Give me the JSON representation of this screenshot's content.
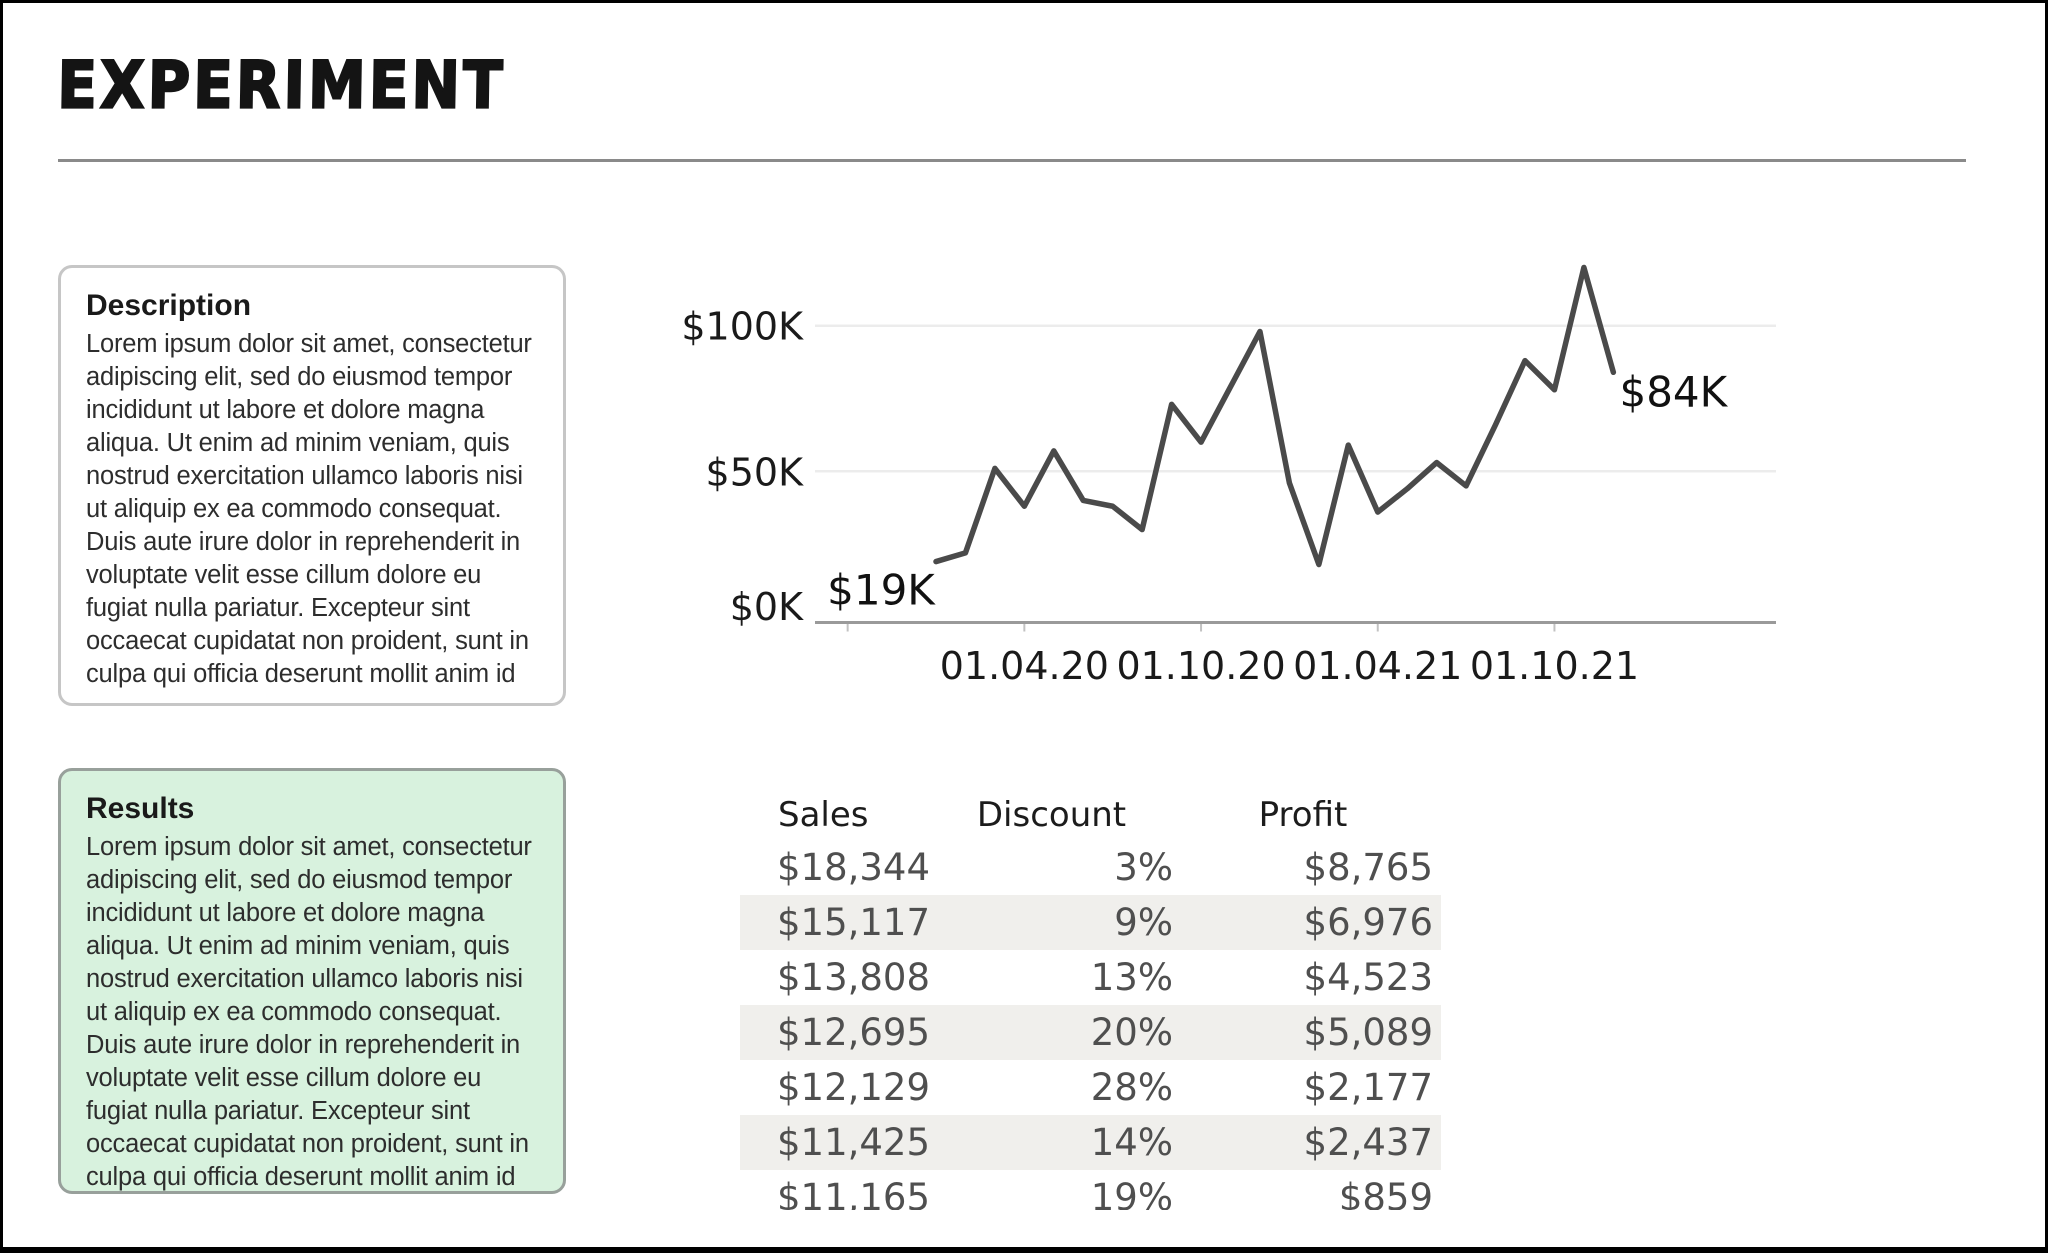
{
  "page": {
    "title": "Experiment"
  },
  "description_card": {
    "title": "Description",
    "body": "Lorem ipsum dolor sit amet, consectetur adipiscing elit, sed do eiusmod tempor incididunt ut labore et dolore magna aliqua. Ut enim ad minim veniam, quis nostrud exercitation ullamco laboris nisi ut aliquip ex ea commodo consequat. Duis aute irure dolor in reprehenderit in voluptate velit esse cillum dolore eu fugiat nulla pariatur. Excepteur sint occaecat cupidatat non proident, sunt in culpa qui officia deserunt mollit anim id"
  },
  "results_card": {
    "title": "Results",
    "body": "Lorem ipsum dolor sit amet, consectetur adipiscing elit, sed do eiusmod tempor incididunt ut labore et dolore magna aliqua. Ut enim ad minim veniam, quis nostrud exercitation ullamco laboris nisi ut aliquip ex ea commodo consequat. Duis aute irure dolor in reprehenderit in voluptate velit esse cillum dolore eu fugiat nulla pariatur. Excepteur sint occaecat cupidatat non proident, sunt in culpa qui officia deserunt mollit anim id",
    "background_color": "#d8f2de"
  },
  "chart_data": {
    "type": "line",
    "title": "",
    "xlabel": "",
    "ylabel": "",
    "x_unit": "month",
    "values_k": [
      19,
      22,
      51,
      38,
      57,
      40,
      38,
      30,
      73,
      60,
      79,
      98,
      46,
      18,
      59,
      36,
      44,
      53,
      45,
      66,
      88,
      78,
      120,
      84
    ],
    "ylim": [
      0,
      125
    ],
    "y_ticks": [
      {
        "value_k": 100,
        "label": "$100K"
      },
      {
        "value_k": 50,
        "label": "$50K"
      },
      {
        "value_k": 0,
        "label": "$0K"
      }
    ],
    "x_ticks": [
      {
        "month_index": -3,
        "label": ""
      },
      {
        "month_index": 3,
        "label": "01.04.20"
      },
      {
        "month_index": 9,
        "label": "01.10.20"
      },
      {
        "month_index": 15,
        "label": "01.04.21"
      },
      {
        "month_index": 21,
        "label": "01.10.21"
      }
    ],
    "annotations": {
      "start_label": "$19K",
      "end_label": "$84K"
    },
    "legend": "none",
    "grid": "horizontal",
    "line_color": "#4a4a4a",
    "gridline_color": "#ececec",
    "axis_color": "#9a9a9a"
  },
  "table": {
    "columns": [
      "Sales",
      "Discount",
      "Profit"
    ],
    "rows": [
      [
        "$18,344",
        "3%",
        "$8,765"
      ],
      [
        "$15,117",
        "9%",
        "$6,976"
      ],
      [
        "$13,808",
        "13%",
        "$4,523"
      ],
      [
        "$12,695",
        "20%",
        "$5,089"
      ],
      [
        "$12,129",
        "28%",
        "$2,177"
      ],
      [
        "$11,425",
        "14%",
        "$2,437"
      ],
      [
        "$11,165",
        "19%",
        "$859"
      ]
    ],
    "stripe_color": "#f0efec"
  }
}
